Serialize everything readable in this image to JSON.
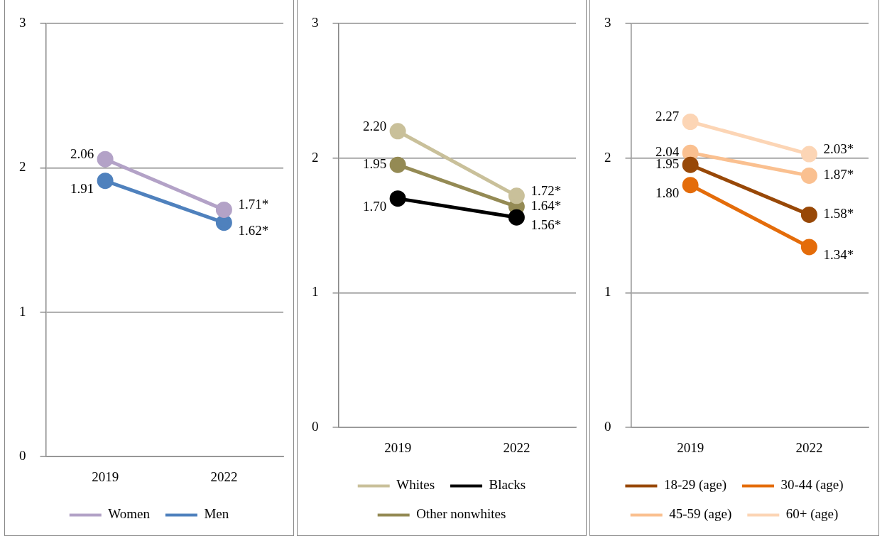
{
  "chart_data": [
    {
      "type": "line",
      "categories": [
        "2019",
        "2022"
      ],
      "ylim": [
        0,
        3
      ],
      "yticks": [
        0,
        1,
        2,
        3
      ],
      "grid": "y",
      "legend": "bottom",
      "marker": "circle",
      "series": [
        {
          "name": "Women",
          "color": "#b3a2c7",
          "values": [
            2.06,
            1.71
          ],
          "value_labels": [
            "2.06",
            "1.71*"
          ]
        },
        {
          "name": "Men",
          "color": "#4f81bd",
          "values": [
            1.91,
            1.62
          ],
          "value_labels": [
            "1.91",
            "1.62*"
          ]
        }
      ]
    },
    {
      "type": "line",
      "categories": [
        "2019",
        "2022"
      ],
      "ylim": [
        0,
        3
      ],
      "yticks": [
        0,
        1,
        2,
        3
      ],
      "grid": "y",
      "legend": "bottom",
      "marker": "circle",
      "series": [
        {
          "name": "Whites",
          "color": "#c9c09a",
          "values": [
            2.2,
            1.72
          ],
          "value_labels": [
            "2.20",
            "1.72*"
          ]
        },
        {
          "name": "Blacks",
          "color": "#000000",
          "values": [
            1.7,
            1.56
          ],
          "value_labels": [
            "1.70",
            "1.56*"
          ]
        },
        {
          "name": "Other nonwhites",
          "color": "#948a54",
          "values": [
            1.95,
            1.64
          ],
          "value_labels": [
            "1.95",
            "1.64*"
          ]
        }
      ]
    },
    {
      "type": "line",
      "categories": [
        "2019",
        "2022"
      ],
      "ylim": [
        0,
        3
      ],
      "yticks": [
        0,
        1,
        2,
        3
      ],
      "grid": "y",
      "legend": "bottom",
      "marker": "circle",
      "series": [
        {
          "name": "18-29 (age)",
          "color": "#984807",
          "values": [
            1.95,
            1.58
          ],
          "value_labels": [
            "1.95",
            "1.58*"
          ]
        },
        {
          "name": "30-44 (age)",
          "color": "#e46c0a",
          "values": [
            1.8,
            1.34
          ],
          "value_labels": [
            "1.80",
            "1.34*"
          ]
        },
        {
          "name": "45-59 (age)",
          "color": "#fac090",
          "values": [
            2.04,
            1.87
          ],
          "value_labels": [
            "2.04",
            "1.87*"
          ]
        },
        {
          "name": "60+ (age)",
          "color": "#fcd5b5",
          "values": [
            2.27,
            2.03
          ],
          "value_labels": [
            "2.27",
            "2.03*"
          ]
        }
      ]
    }
  ]
}
